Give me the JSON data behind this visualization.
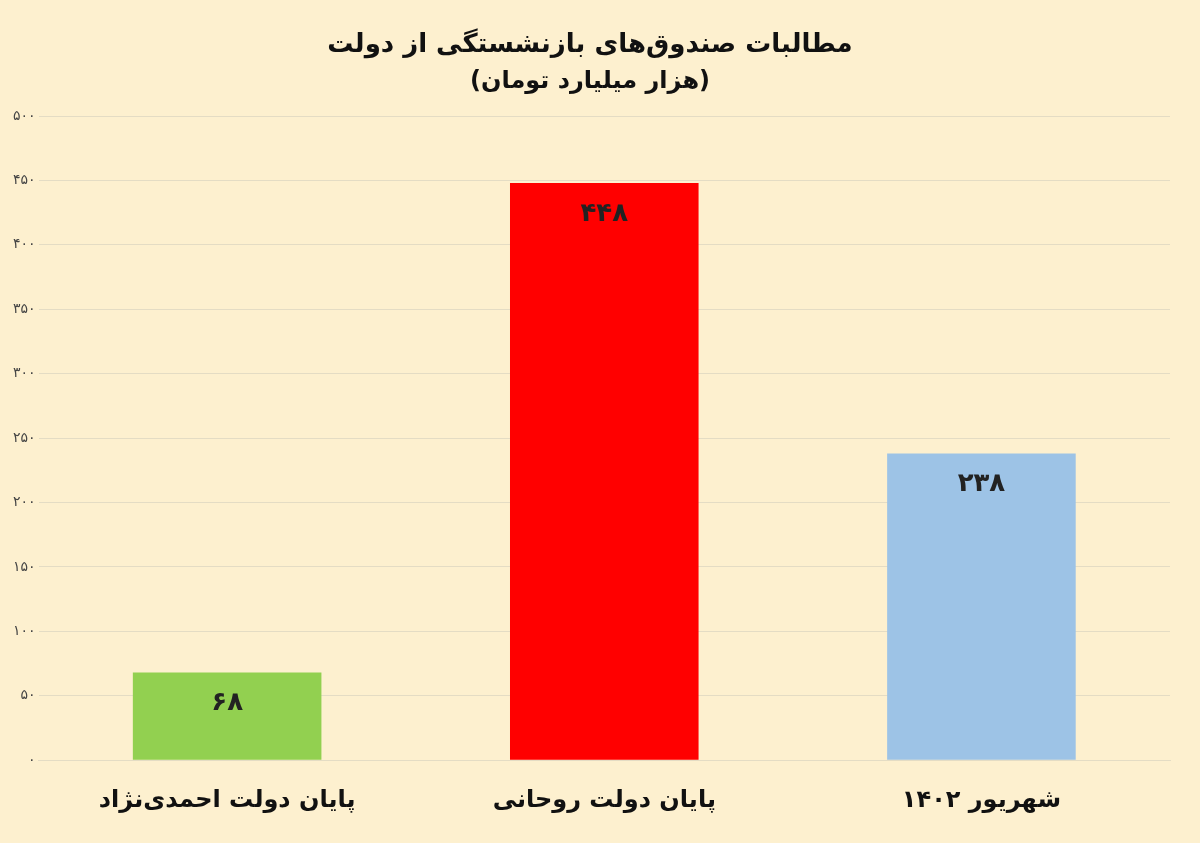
{
  "chart_data": {
    "type": "bar",
    "title": "مطالبات صندوق‌های بازنشستگی از دولت",
    "subtitle": "(هزار میلیارد تومان)",
    "categories": [
      "پایان دولت احمدی‌نژاد",
      "پایان دولت روحانی",
      "شهریور ۱۴۰۲"
    ],
    "values": [
      68,
      448,
      238
    ],
    "colors": [
      "#92d050",
      "#ff0000",
      "#9dc3e6"
    ],
    "value_labels": [
      "۶۸",
      "۴۴۸",
      "۲۳۸"
    ],
    "ylim": [
      0,
      500
    ],
    "yticks": [
      {
        "value": 0,
        "label": "۰"
      },
      {
        "value": 50,
        "label": "۵۰"
      },
      {
        "value": 100,
        "label": "۱۰۰"
      },
      {
        "value": 150,
        "label": "۱۵۰"
      },
      {
        "value": 200,
        "label": "۲۰۰"
      },
      {
        "value": 250,
        "label": "۲۵۰"
      },
      {
        "value": 300,
        "label": "۳۰۰"
      },
      {
        "value": 350,
        "label": "۳۵۰"
      },
      {
        "value": 400,
        "label": "۴۰۰"
      },
      {
        "value": 450,
        "label": "۴۵۰"
      },
      {
        "value": 500,
        "label": "۵۰۰"
      }
    ],
    "grid": "y",
    "legend": false
  }
}
